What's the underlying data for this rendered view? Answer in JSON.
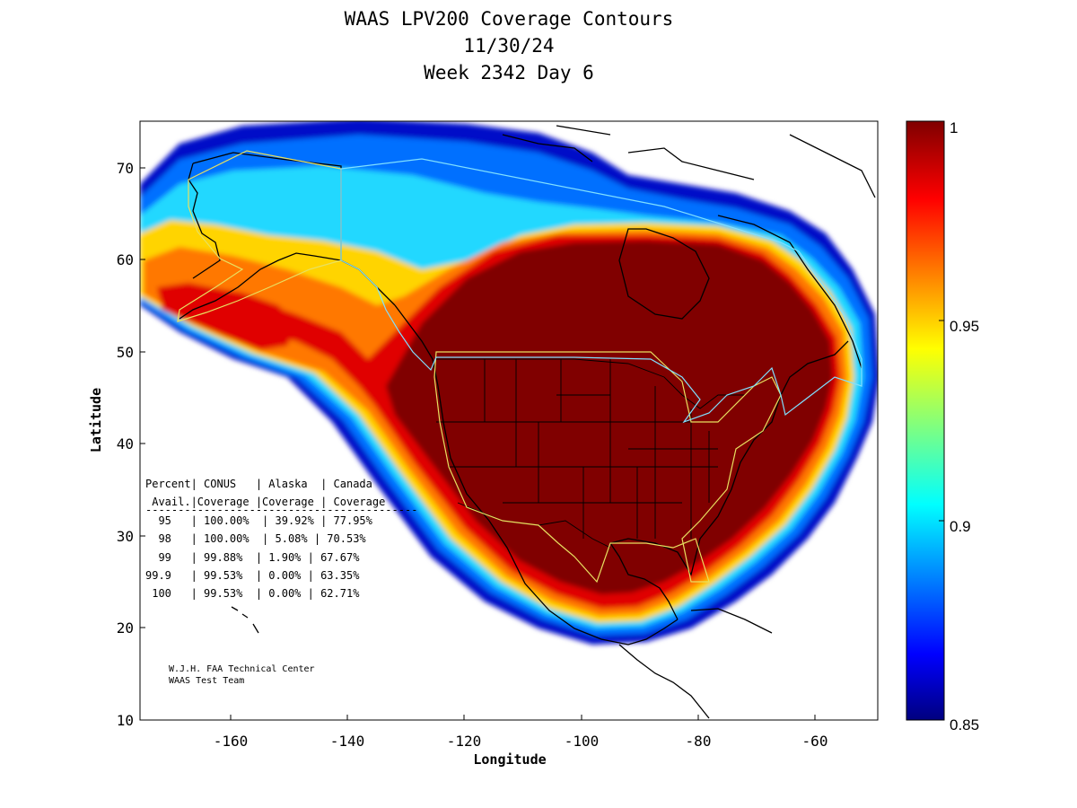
{
  "title": {
    "line1": "WAAS LPV200 Coverage Contours",
    "line2": "11/30/24",
    "line3": "Week 2342 Day 6"
  },
  "axes": {
    "xlabel": "Longitude",
    "ylabel": "Latitude",
    "xlim": [
      -175,
      -50
    ],
    "ylim": [
      10,
      75
    ],
    "xticks": [
      "-160",
      "-140",
      "-120",
      "-100",
      "-80",
      "-60"
    ],
    "yticks": [
      "10",
      "20",
      "30",
      "40",
      "50",
      "60",
      "70"
    ]
  },
  "colorbar": {
    "min": 0.85,
    "max": 1,
    "ticks": [
      "1",
      "0.95",
      "0.9",
      "0.85"
    ],
    "colormap": "jet"
  },
  "table": {
    "header1": "Percent| CONUS   | Alaska  | Canada",
    "header2": " Avail.|Coverage |Coverage | Coverage",
    "separator": "------------------------------------------",
    "rows": [
      "  95   | 100.00%  | 39.92% | 77.95%",
      "  98   | 100.00%  | 5.08% | 70.53%",
      "  99   | 99.88%  | 1.90% | 67.67%",
      "99.9   | 99.53%  | 0.00% | 63.35%",
      " 100   | 99.53%  | 0.00% | 62.71%"
    ]
  },
  "credit": {
    "line1": "W.J.H. FAA Technical Center",
    "line2": "WAAS Test Team"
  },
  "colors": {
    "full": "#800000",
    "red": "#e00000",
    "orange": "#ff7a00",
    "yellow": "#ffd000",
    "cyan": "#30d0ff",
    "blue": "#0020e0",
    "boundary_yellow": "#e8e060",
    "boundary_cyan": "#80e0ff"
  }
}
